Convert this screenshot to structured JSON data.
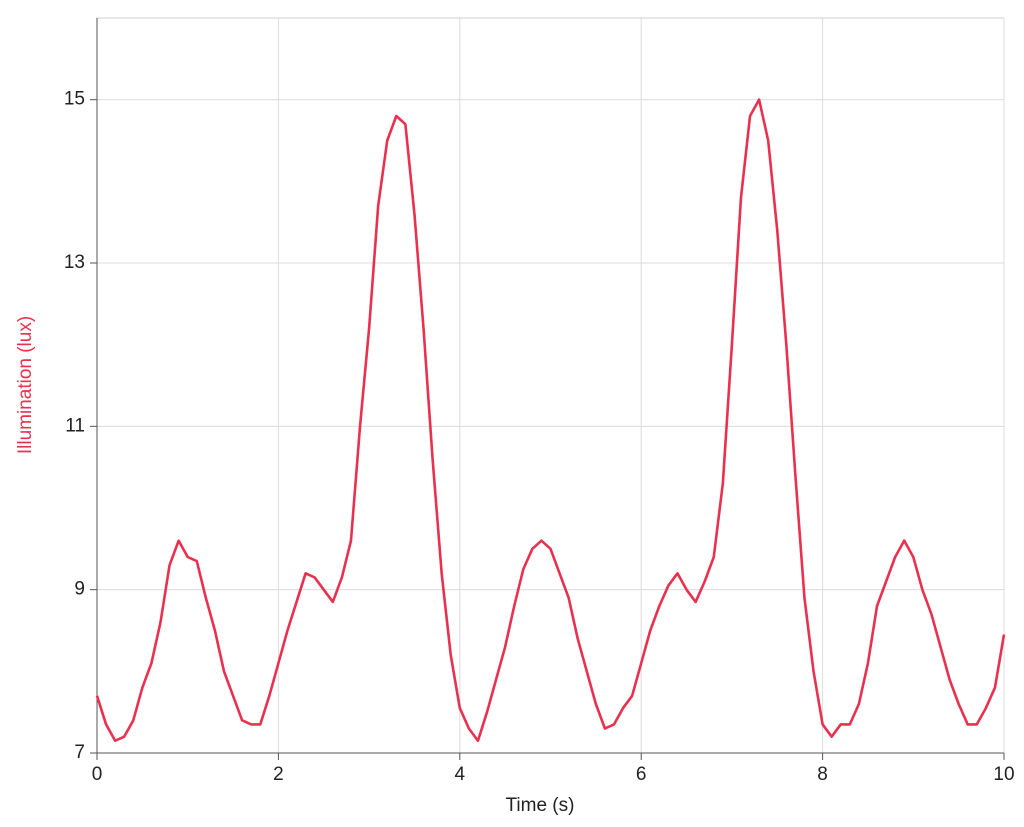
{
  "chart_data": {
    "type": "line",
    "x_label": "Time (s)",
    "y_label": "Illumination (lux)",
    "x": [
      0,
      0.1,
      0.2,
      0.3,
      0.4,
      0.5,
      0.6,
      0.7,
      0.8,
      0.9,
      1,
      1.1,
      1.2,
      1.3,
      1.4,
      1.5,
      1.6,
      1.7,
      1.8,
      1.9,
      2,
      2.1,
      2.2,
      2.3,
      2.4,
      2.5,
      2.6,
      2.7,
      2.8,
      2.9,
      3,
      3.1,
      3.2,
      3.3,
      3.4,
      3.5,
      3.6,
      3.7,
      3.8,
      3.9,
      4,
      4.1,
      4.2,
      4.3,
      4.4,
      4.5,
      4.6,
      4.7,
      4.8,
      4.9,
      5,
      5.1,
      5.2,
      5.3,
      5.4,
      5.5,
      5.6,
      5.7,
      5.8,
      5.9,
      6,
      6.1,
      6.2,
      6.3,
      6.4,
      6.5,
      6.6,
      6.7,
      6.8,
      6.9,
      7,
      7.1,
      7.2,
      7.3,
      7.4,
      7.5,
      7.6,
      7.7,
      7.8,
      7.9,
      8,
      8.1,
      8.2,
      8.3,
      8.4,
      8.5,
      8.6,
      8.7,
      8.8,
      8.9,
      9,
      9.1,
      9.2,
      9.3,
      9.4,
      9.5,
      9.6,
      9.7,
      9.8,
      9.9,
      10
    ],
    "series": [
      {
        "name": "Illumination",
        "color": "#e8314f",
        "values": [
          7.7,
          7.35,
          7.15,
          7.2,
          7.4,
          7.8,
          8.1,
          8.6,
          9.3,
          9.6,
          9.4,
          9.35,
          8.9,
          8.5,
          8.0,
          7.7,
          7.4,
          7.35,
          7.35,
          7.7,
          8.1,
          8.5,
          8.85,
          9.2,
          9.15,
          9.0,
          8.85,
          9.15,
          9.6,
          11.0,
          12.2,
          13.7,
          14.5,
          14.8,
          14.7,
          13.6,
          12.2,
          10.6,
          9.2,
          8.2,
          7.55,
          7.3,
          7.15,
          7.5,
          7.9,
          8.3,
          8.8,
          9.25,
          9.5,
          9.6,
          9.5,
          9.2,
          8.9,
          8.4,
          8.0,
          7.6,
          7.3,
          7.35,
          7.55,
          7.7,
          8.1,
          8.5,
          8.8,
          9.05,
          9.2,
          9.0,
          8.85,
          9.1,
          9.4,
          10.3,
          12.0,
          13.8,
          14.8,
          15.0,
          14.5,
          13.4,
          12.0,
          10.4,
          8.9,
          8.0,
          7.35,
          7.2,
          7.35,
          7.35,
          7.6,
          8.1,
          8.8,
          9.1,
          9.4,
          9.6,
          9.4,
          9.0,
          8.7,
          8.3,
          7.9,
          7.6,
          7.35,
          7.35,
          7.55,
          7.8,
          8.45
        ]
      }
    ],
    "xlim": [
      0,
      10
    ],
    "xticks": [
      0,
      2,
      4,
      6,
      8,
      10
    ],
    "ylim": [
      7,
      16
    ],
    "yticks": [
      7,
      9,
      11,
      13,
      15
    ],
    "grid": true
  }
}
